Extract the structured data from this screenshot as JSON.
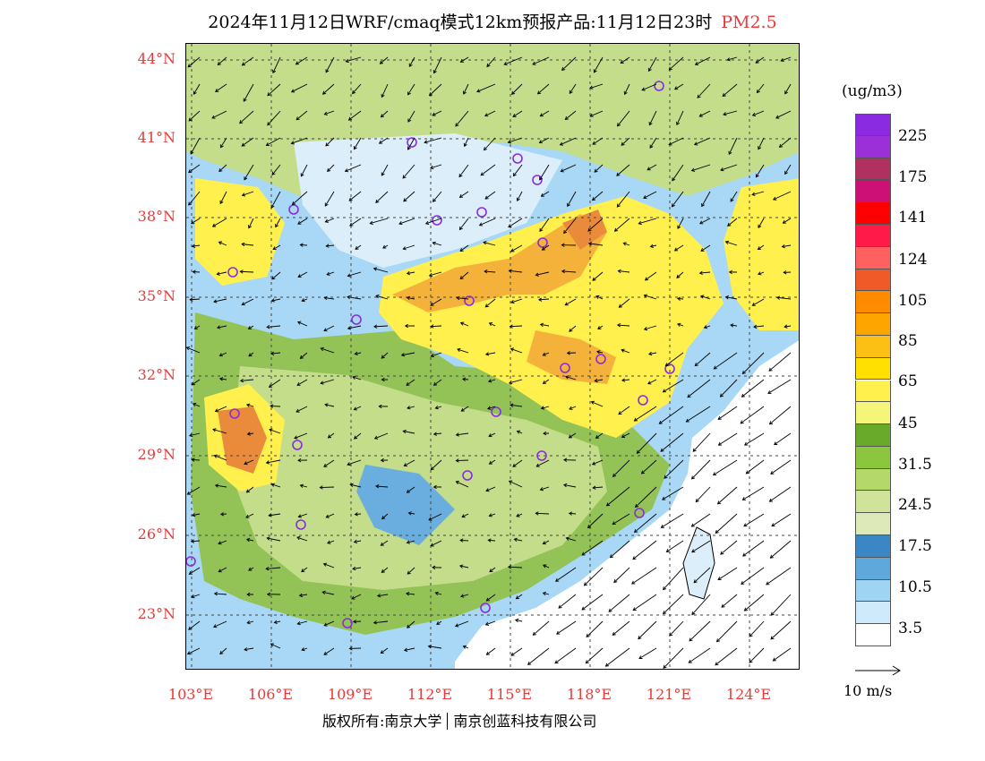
{
  "title": {
    "main": "2024年11月12日WRF/cmaq模式12km预报产品:11月12日23时",
    "pollutant": "PM2.5"
  },
  "map": {
    "lat_labels": [
      "44°N",
      "41°N",
      "38°N",
      "35°N",
      "32°N",
      "29°N",
      "26°N",
      "23°N"
    ],
    "lon_labels": [
      "103°E",
      "106°E",
      "109°E",
      "112°E",
      "115°E",
      "118°E",
      "121°E",
      "124°E"
    ],
    "colors": {
      "ocean": "#ffffff",
      "very_clean": "#dbeefa",
      "clean": "#a8d8f5",
      "moderate_blue": "#6aaee0",
      "light_green": "#c4dd8a",
      "green": "#93c356",
      "yellow": "#fff04d",
      "orange": "#f4b23a",
      "dark_orange": "#e98b3a"
    }
  },
  "legend": {
    "unit": "(ug/m3)",
    "labels": [
      "225",
      "175",
      "141",
      "124",
      "105",
      "85",
      "65",
      "45",
      "31.5",
      "24.5",
      "17.5",
      "10.5",
      "3.5"
    ],
    "colors": [
      "#8a2be2",
      "#9b30d9",
      "#b03060",
      "#cd1076",
      "#ff0000",
      "#ff1a4a",
      "#ff6060",
      "#f05a28",
      "#ff8c00",
      "#ffa500",
      "#fcc015",
      "#ffe000",
      "#fff04d",
      "#f5f57a",
      "#6aaa2a",
      "#8cc63f",
      "#b5d86a",
      "#cfe39a",
      "#dde9b8",
      "#3b87c5",
      "#5fa8dc",
      "#9fd5f3",
      "#cfeafb",
      "#ffffff"
    ]
  },
  "wind_ref": {
    "label": "10 m/s"
  },
  "copyright": {
    "left": "版权所有:南京大学",
    "right": "南京创蓝科技有限公司"
  }
}
